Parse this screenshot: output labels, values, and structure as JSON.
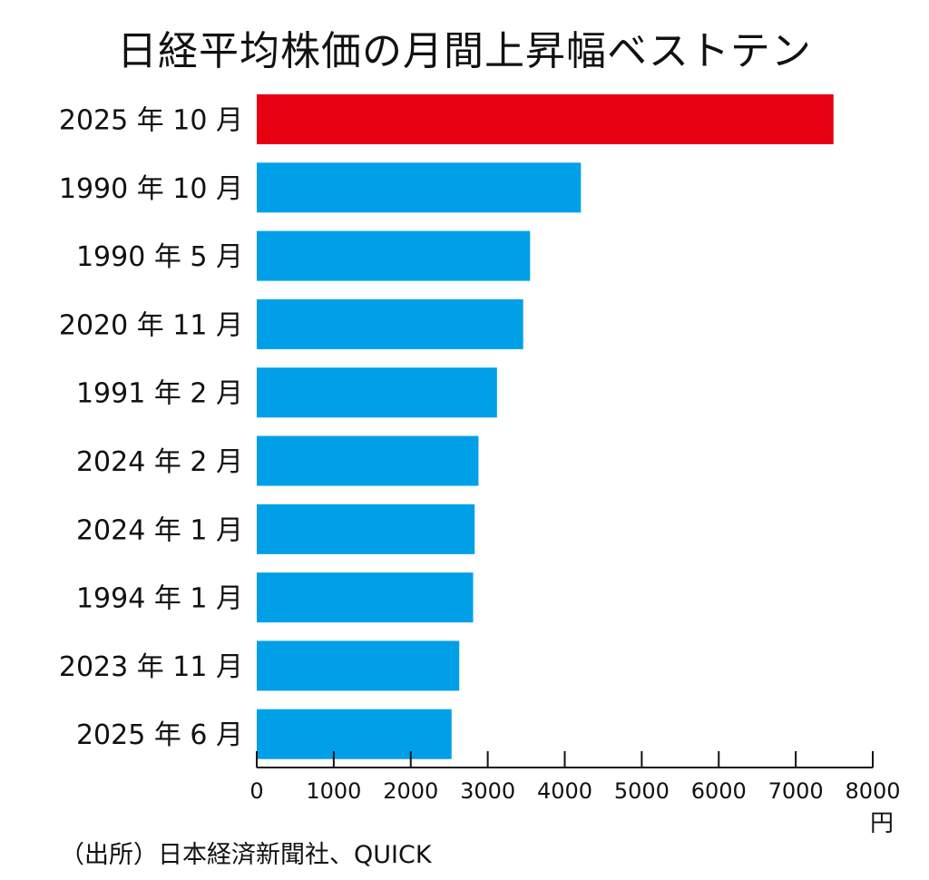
{
  "chart_data": {
    "type": "bar",
    "orientation": "horizontal",
    "title": "日経平均株価の月間上昇幅ベストテン",
    "categories": [
      "2025 年 10 月",
      "1990 年 10 月",
      "1990 年 5 月",
      "2020 年 11 月",
      "1991 年 2 月",
      "2024 年 2 月",
      "2024 年 1 月",
      "1994 年 1 月",
      "2023 年 11 月",
      "2025 年 6 月"
    ],
    "values": [
      7490,
      4210,
      3550,
      3460,
      3120,
      2880,
      2830,
      2810,
      2630,
      2530
    ],
    "bar_colors": [
      "#e60012",
      "#00a0e9",
      "#00a0e9",
      "#00a0e9",
      "#00a0e9",
      "#00a0e9",
      "#00a0e9",
      "#00a0e9",
      "#00a0e9",
      "#00a0e9"
    ],
    "xlim": [
      0,
      8000
    ],
    "xticks": [
      "0",
      "1000",
      "2000",
      "3000",
      "4000",
      "5000",
      "6000",
      "7000",
      "8000"
    ],
    "xunit": "円",
    "grid": false,
    "legend": "none"
  },
  "source": "（出所）日本経済新聞社、QUICK"
}
